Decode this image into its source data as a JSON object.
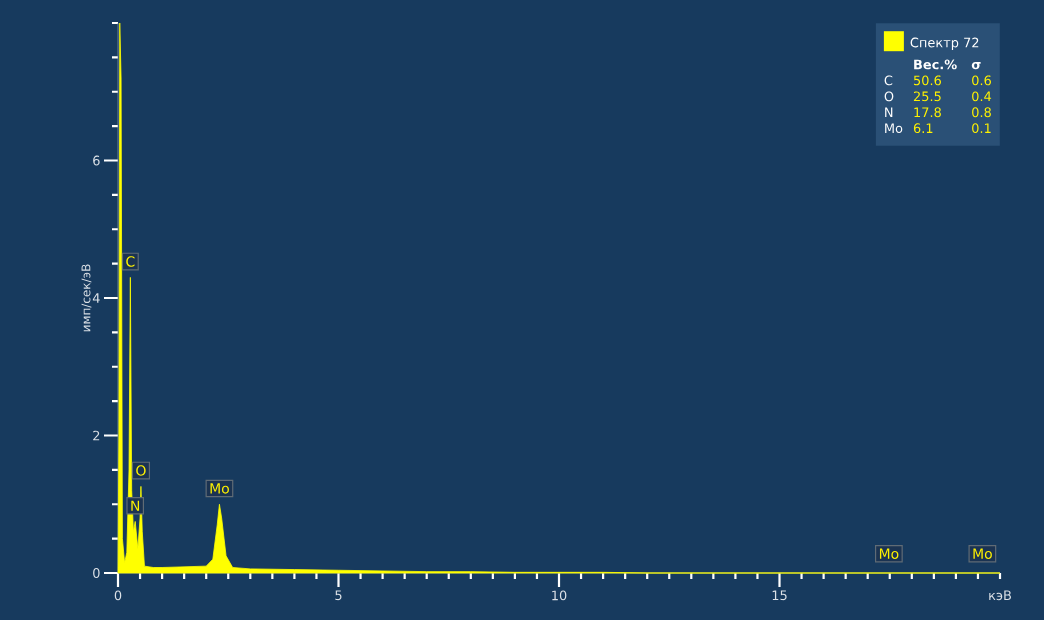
{
  "chart_data": {
    "type": "area",
    "ylabel": "имп/сек/эВ",
    "xlabel": "кэВ",
    "x": [
      0.0,
      0.02,
      0.04,
      0.07,
      0.1,
      0.15,
      0.2,
      0.25,
      0.28,
      0.31,
      0.35,
      0.39,
      0.45,
      0.5,
      0.52,
      0.55,
      0.6,
      0.8,
      1.0,
      1.5,
      2.0,
      2.15,
      2.25,
      2.3,
      2.35,
      2.45,
      2.6,
      3,
      4,
      5,
      6,
      7,
      8,
      9,
      10,
      11,
      12,
      20
    ],
    "series": [
      {
        "name": "Спектр 72",
        "color": "#ffff00",
        "values": [
          0,
          2,
          8,
          7.2,
          0.5,
          0.15,
          0.3,
          1.5,
          4.3,
          1.2,
          0.6,
          0.75,
          0.35,
          0.8,
          1.26,
          0.6,
          0.1,
          0.08,
          0.08,
          0.09,
          0.1,
          0.2,
          0.7,
          1.0,
          0.8,
          0.25,
          0.08,
          0.06,
          0.05,
          0.04,
          0.03,
          0.02,
          0.02,
          0.01,
          0.01,
          0.01,
          0,
          0
        ]
      }
    ],
    "xlim": [
      0,
      20
    ],
    "ylim": [
      0,
      8
    ],
    "xticks": [
      0,
      {
        "value": 0.5,
        "label": null
      },
      {
        "value": 1,
        "label": null
      },
      {
        "value": 1.5,
        "label": null
      },
      {
        "value": 2,
        "label": null
      },
      {
        "value": 2.5,
        "label": null
      },
      {
        "value": 3,
        "label": null
      },
      {
        "value": 3.5,
        "label": null
      },
      {
        "value": 4,
        "label": null
      },
      {
        "value": 4.5,
        "label": null
      },
      5,
      {
        "value": 5.5,
        "label": null
      },
      {
        "value": 6,
        "label": null
      },
      {
        "value": 6.5,
        "label": null
      },
      {
        "value": 7,
        "label": null
      },
      {
        "value": 7.5,
        "label": null
      },
      {
        "value": 8,
        "label": null
      },
      {
        "value": 8.5,
        "label": null
      },
      {
        "value": 9,
        "label": null
      },
      {
        "value": 9.5,
        "label": null
      },
      10,
      {
        "value": 10.5,
        "label": null
      },
      {
        "value": 11,
        "label": null
      },
      {
        "value": 11.5,
        "label": null
      },
      {
        "value": 12,
        "label": null
      },
      {
        "value": 12.5,
        "label": null
      },
      {
        "value": 13,
        "label": null
      },
      {
        "value": 13.5,
        "label": null
      },
      {
        "value": 14,
        "label": null
      },
      {
        "value": 14.5,
        "label": null
      },
      15,
      {
        "value": 15.5,
        "label": null
      },
      {
        "value": 16,
        "label": null
      },
      {
        "value": 16.5,
        "label": null
      },
      {
        "value": 17,
        "label": null
      },
      {
        "value": 17.5,
        "label": null
      },
      {
        "value": 18,
        "label": null
      },
      {
        "value": 18.5,
        "label": null
      },
      {
        "value": 19,
        "label": null
      },
      {
        "value": 19.5,
        "label": null
      },
      {
        "value": 20,
        "label": null
      }
    ],
    "yticks": [
      0,
      {
        "value": 0.5,
        "label": null
      },
      {
        "value": 1,
        "label": null
      },
      {
        "value": 1.5,
        "label": null
      },
      2,
      {
        "value": 2.5,
        "label": null
      },
      {
        "value": 3,
        "label": null
      },
      {
        "value": 3.5,
        "label": null
      },
      4,
      {
        "value": 4.5,
        "label": null
      },
      {
        "value": 5,
        "label": null
      },
      {
        "value": 5.5,
        "label": null
      },
      6,
      {
        "value": 6.5,
        "label": null
      },
      {
        "value": 7,
        "label": null
      },
      {
        "value": 7.5,
        "label": null
      },
      {
        "value": 8,
        "label": null
      }
    ],
    "legend": "top right",
    "grid": false,
    "annotations": [
      {
        "text": "C",
        "x": 0.28,
        "y": 4.3
      },
      {
        "text": "O",
        "x": 0.52,
        "y": 1.26
      },
      {
        "text": "N",
        "x": 0.39,
        "y": 0.75
      },
      {
        "text": "Mo",
        "x": 2.3,
        "y": 1.0
      },
      {
        "text": "Mo",
        "x": 17.48,
        "y": 0.05
      },
      {
        "text": "Mo",
        "x": 19.6,
        "y": 0.05
      },
      "Вес.%",
      "σ",
      "C",
      "50.6",
      "0.6",
      "O",
      "25.5",
      "0.4",
      "N",
      "17.8",
      "0.8",
      "Mo",
      "6.1",
      "0.1"
    ]
  }
}
